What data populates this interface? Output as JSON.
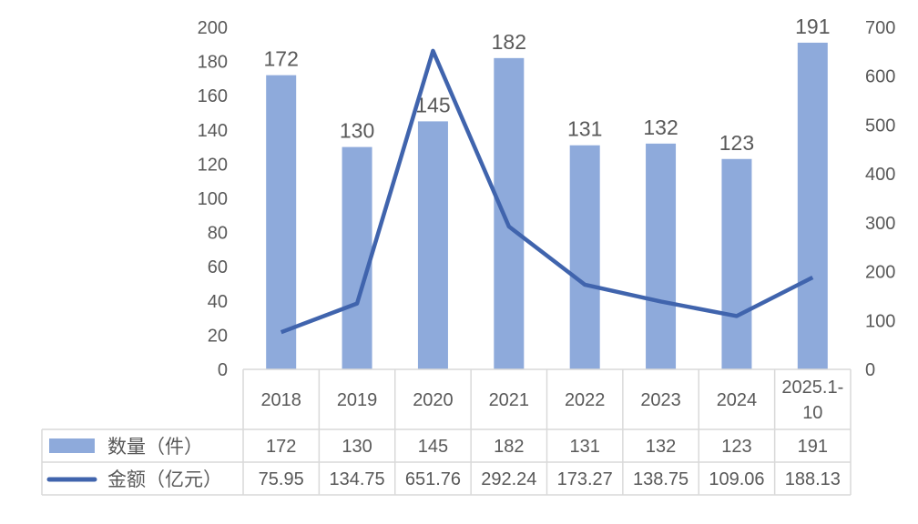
{
  "chart_data": {
    "type": "bar+line",
    "categories": [
      "2018",
      "2019",
      "2020",
      "2021",
      "2022",
      "2023",
      "2024",
      "2025.1-10"
    ],
    "series": [
      {
        "name": "数量（件）",
        "type": "bar",
        "axis": "left",
        "values": [
          172,
          130,
          145,
          182,
          131,
          132,
          123,
          191
        ],
        "color": "#8eaadb"
      },
      {
        "name": "金额（亿元）",
        "type": "line",
        "axis": "right",
        "values": [
          75.95,
          134.75,
          651.76,
          292.24,
          173.27,
          138.75,
          109.06,
          188.13
        ],
        "color": "#4064ad"
      }
    ],
    "table_values": [
      [
        "172",
        "130",
        "145",
        "182",
        "131",
        "132",
        "123",
        "191"
      ],
      [
        "75.95",
        "134.75",
        "651.76",
        "292.24",
        "173.27",
        "138.75",
        "109.06",
        "188.13"
      ]
    ],
    "ylim_left": [
      0,
      200
    ],
    "yticks_left": [
      0,
      20,
      40,
      60,
      80,
      100,
      120,
      140,
      160,
      180,
      200
    ],
    "ylim_right": [
      0,
      700
    ],
    "yticks_right": [
      0,
      100,
      200,
      300,
      400,
      500,
      600,
      700
    ],
    "grid": false,
    "legend": "data-table"
  }
}
